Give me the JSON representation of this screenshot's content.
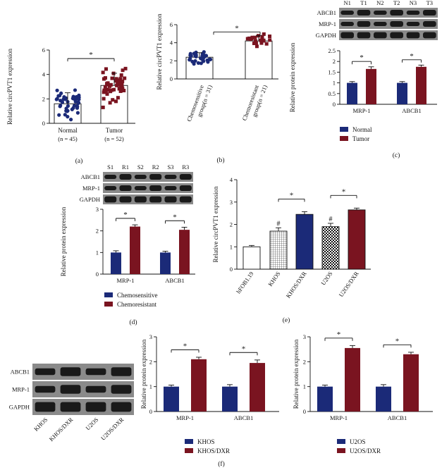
{
  "colors": {
    "navy": "#1b2a78",
    "maroon": "#7a1420",
    "white": "#ffffff",
    "gray": "#555555",
    "band": "#1a1a1a",
    "blot": "#8a8a8a"
  },
  "chart_data": [
    {
      "id": "a",
      "type": "scatter",
      "panel_label": "(a)",
      "ylabel": "Relative circPVT1 expression",
      "ylim": [
        0,
        6
      ],
      "yticks": [
        0,
        2,
        4,
        6
      ],
      "categories": [
        "Normal",
        "Tumor"
      ],
      "sublabels": [
        "(n = 45)",
        "(n = 52)"
      ],
      "means": [
        1.6,
        3.1
      ],
      "sd": [
        0.9,
        1.0
      ],
      "n": [
        45,
        52
      ],
      "sig": "*"
    },
    {
      "id": "b",
      "type": "scatter",
      "panel_label": "(b)",
      "ylabel": "Relative circPVT1 expression",
      "ylim": [
        0,
        6
      ],
      "yticks": [
        0,
        2,
        4,
        6
      ],
      "categories": [
        "Chemosensitive",
        "Chemoresistant"
      ],
      "sublabels": [
        "group(n = 31)",
        "group(n = 21)"
      ],
      "means": [
        2.4,
        4.2
      ],
      "sd": [
        0.5,
        0.6
      ],
      "n": [
        31,
        21
      ],
      "sig": "*"
    },
    {
      "id": "c",
      "type": "bar",
      "panel_label": "(c)",
      "ylabel": "Relative protein expression",
      "ylim": [
        0,
        2.5
      ],
      "yticks": [
        0.0,
        0.5,
        1.0,
        1.5,
        2.0,
        2.5
      ],
      "categories": [
        "MRP-1",
        "ABCB1"
      ],
      "series": [
        {
          "name": "Normal",
          "values": [
            1.0,
            1.0
          ],
          "err": [
            0.06,
            0.06
          ]
        },
        {
          "name": "Tumor",
          "values": [
            1.65,
            1.75
          ],
          "err": [
            0.1,
            0.08
          ]
        }
      ],
      "sig": [
        "*",
        "*"
      ],
      "blot": {
        "lanes": [
          "N1",
          "T1",
          "N2",
          "T2",
          "N3",
          "T3"
        ],
        "rows": [
          "ABCB1",
          "MRP-1",
          "GAPDH"
        ]
      }
    },
    {
      "id": "d",
      "type": "bar",
      "panel_label": "(d)",
      "ylabel": "Relative protein expression",
      "ylim": [
        0,
        3
      ],
      "yticks": [
        0,
        1,
        2,
        3
      ],
      "categories": [
        "MRP-1",
        "ABCB1"
      ],
      "series": [
        {
          "name": "Chemosensitive",
          "values": [
            1.0,
            1.0
          ],
          "err": [
            0.08,
            0.06
          ]
        },
        {
          "name": "Chemoresistant",
          "values": [
            2.2,
            2.05
          ],
          "err": [
            0.08,
            0.12
          ]
        }
      ],
      "sig": [
        "*",
        "*"
      ],
      "blot": {
        "lanes": [
          "S1",
          "R1",
          "S2",
          "R2",
          "S3",
          "R3"
        ],
        "rows": [
          "ABCB1",
          "MRP-1",
          "GAPDH"
        ]
      }
    },
    {
      "id": "e",
      "type": "bar",
      "panel_label": "(e)",
      "ylabel": "Relative circPVT1 expression",
      "ylim": [
        0,
        4
      ],
      "yticks": [
        0,
        1,
        2,
        3,
        4
      ],
      "categories": [
        "hFOB1.19",
        "KHOS",
        "KHOS/DXR",
        "U2OS",
        "U2OS/DXR"
      ],
      "values": [
        1.0,
        1.7,
        2.45,
        1.9,
        2.65
      ],
      "err": [
        0.06,
        0.15,
        0.12,
        0.15,
        0.08
      ],
      "fills": [
        "white",
        "white-grid",
        "navy",
        "checker",
        "maroon"
      ],
      "hash": [
        "",
        "#",
        "",
        "#",
        ""
      ],
      "sig_pairs": [
        [
          1,
          2
        ],
        [
          3,
          4
        ]
      ],
      "sig": "*"
    },
    {
      "id": "f1",
      "type": "bar",
      "ylabel": "Relative protein expression",
      "ylim": [
        0,
        3
      ],
      "yticks": [
        0,
        1,
        2,
        3
      ],
      "categories": [
        "MRP-1",
        "ABCB1"
      ],
      "series": [
        {
          "name": "KHOS",
          "values": [
            1.0,
            1.0
          ],
          "err": [
            0.06,
            0.08
          ]
        },
        {
          "name": "KHOS/DXR",
          "values": [
            2.1,
            1.95
          ],
          "err": [
            0.08,
            0.12
          ]
        }
      ],
      "sig": [
        "*",
        "*"
      ]
    },
    {
      "id": "f2",
      "type": "bar",
      "ylabel": "Relative protein expression",
      "ylim": [
        0,
        3
      ],
      "yticks": [
        0,
        1,
        2,
        3
      ],
      "categories": [
        "MRP-1",
        "ABCB1"
      ],
      "series": [
        {
          "name": "U2OS",
          "values": [
            1.0,
            1.0
          ],
          "err": [
            0.06,
            0.08
          ]
        },
        {
          "name": "U2OS/DXR",
          "values": [
            2.55,
            2.3
          ],
          "err": [
            0.1,
            0.08
          ]
        }
      ],
      "sig": [
        "*",
        "*"
      ]
    }
  ],
  "blot_f": {
    "lanes": [
      "KHOS",
      "KHOS/DXR",
      "U2OS",
      "U2OS/DXR"
    ],
    "rows": [
      "ABCB1",
      "MRP-1",
      "GAPDH"
    ]
  },
  "panel_f_label": "(f)"
}
